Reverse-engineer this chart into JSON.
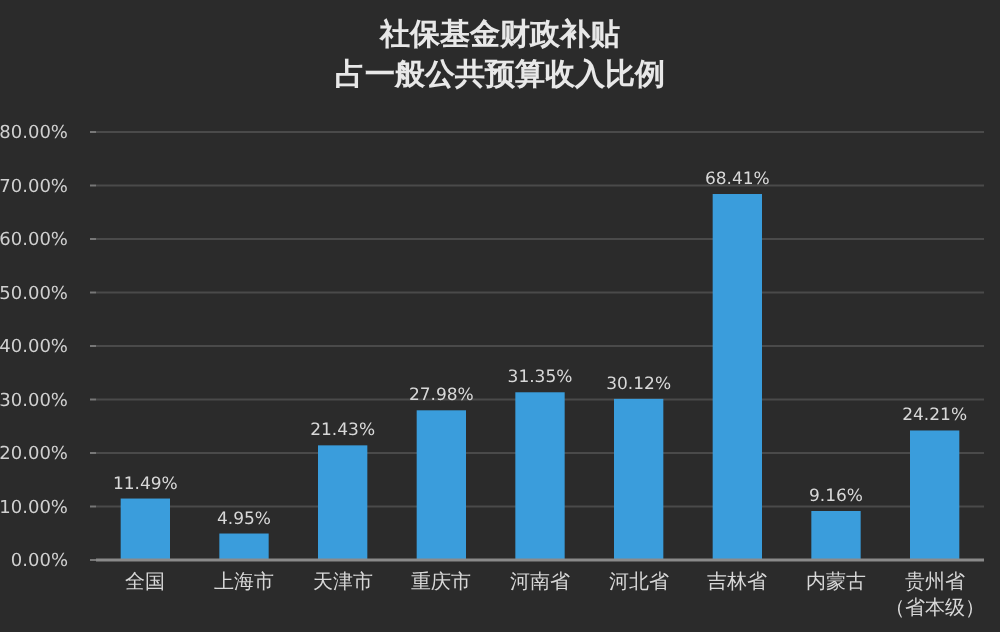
{
  "chart_data": {
    "type": "bar",
    "title": "社保基金财政补贴",
    "subtitle": "占一般公共预算收入比例",
    "categories": [
      "全国",
      "上海市",
      "天津市",
      "重庆市",
      "河南省",
      "河北省",
      "吉林省",
      "内蒙古",
      "贵州省（省本级）"
    ],
    "values": [
      11.49,
      4.95,
      21.43,
      27.98,
      31.35,
      30.12,
      68.41,
      9.16,
      24.21
    ],
    "value_labels": [
      "11.49%",
      "4.95%",
      "21.43%",
      "27.98%",
      "31.35%",
      "30.12%",
      "68.41%",
      "9.16%",
      "24.21%"
    ],
    "color": "#3a9ddc",
    "ylim": [
      0,
      80
    ],
    "yticks": [
      {
        "value": 0,
        "label": "0.00%"
      },
      {
        "value": 10,
        "label": "10.00%"
      },
      {
        "value": 20,
        "label": "20.00%"
      },
      {
        "value": 30,
        "label": "30.00%"
      },
      {
        "value": 40,
        "label": "40.00%"
      },
      {
        "value": 50,
        "label": "50.00%"
      },
      {
        "value": 60,
        "label": "60.00%"
      },
      {
        "value": 70,
        "label": "70.00%"
      },
      {
        "value": 80,
        "label": "80.00%"
      }
    ],
    "grid": "y"
  }
}
